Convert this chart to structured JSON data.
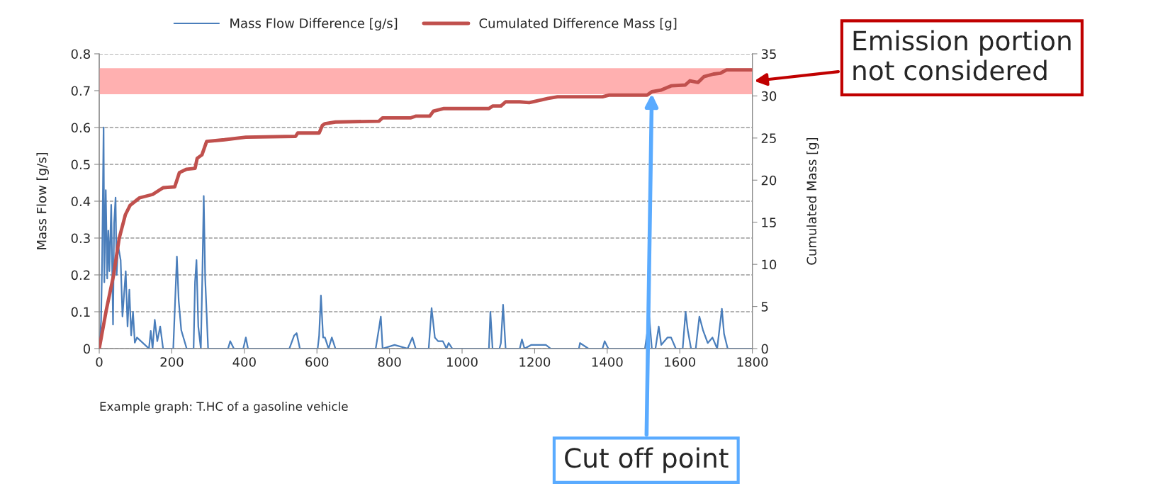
{
  "chart_data": {
    "type": "line",
    "xlim": [
      0,
      1800
    ],
    "xticks": [
      0,
      200,
      400,
      600,
      800,
      1000,
      1200,
      1400,
      1600,
      1800
    ],
    "ylabel": "Mass Flow [g/s]",
    "ylim": [
      0,
      0.8
    ],
    "yticks": [
      0,
      0.1,
      0.2,
      0.3,
      0.4,
      0.5,
      0.6,
      0.7,
      0.8
    ],
    "y2label": "Cumulated Mass [g]",
    "y2lim": [
      0,
      35
    ],
    "y2ticks": [
      0,
      5,
      10,
      15,
      20,
      25,
      30,
      35
    ],
    "grid": "y",
    "legend": "top",
    "line_style": "solid",
    "marker": "none",
    "series": [
      {
        "name": "Mass Flow Difference [g/s]",
        "color": "#4a7ebb",
        "x": [
          0,
          5,
          8,
          12,
          14,
          18,
          22,
          25,
          28,
          33,
          38,
          41,
          45,
          48,
          52,
          59,
          64,
          73,
          78,
          83,
          88,
          93,
          98,
          104,
          137,
          142,
          147,
          153,
          160,
          168,
          176,
          182,
          204,
          208,
          214,
          219,
          226,
          241,
          260,
          264,
          268,
          273,
          280,
          284,
          288,
          292,
          300,
          319,
          355,
          361,
          371,
          397,
          404,
          410,
          524,
          537,
          544,
          553,
          602,
          606,
          611,
          617,
          622,
          632,
          641,
          651,
          762,
          771,
          776,
          781,
          814,
          850,
          863,
          872,
          908,
          916,
          925,
          934,
          947,
          957,
          963,
          973,
          1074,
          1078,
          1084,
          1103,
          1107,
          1113,
          1120,
          1159,
          1165,
          1172,
          1191,
          1231,
          1244,
          1263,
          1322,
          1325,
          1348,
          1387,
          1393,
          1403,
          1504,
          1516,
          1523,
          1533,
          1542,
          1549,
          1566,
          1576,
          1589,
          1608,
          1616,
          1622,
          1631,
          1644,
          1654,
          1664,
          1677,
          1690,
          1703,
          1716,
          1722,
          1732,
          1800
        ],
        "values": [
          0,
          0.074,
          0.24,
          0.6,
          0.18,
          0.43,
          0.19,
          0.32,
          0.21,
          0.39,
          0.065,
          0.34,
          0.41,
          0.2,
          0.28,
          0.24,
          0.087,
          0.21,
          0.06,
          0.16,
          0.036,
          0.1,
          0.016,
          0.03,
          0,
          0.048,
          0,
          0.078,
          0.02,
          0.06,
          0,
          0,
          0,
          0.1,
          0.25,
          0.13,
          0.05,
          0,
          0,
          0.18,
          0.24,
          0.06,
          0,
          0.19,
          0.414,
          0.19,
          0,
          0,
          0,
          0.02,
          0,
          0,
          0.03,
          0,
          0,
          0.035,
          0.042,
          0,
          0,
          0.035,
          0.144,
          0.03,
          0.03,
          0,
          0.03,
          0,
          0,
          0.055,
          0.087,
          0,
          0.01,
          0,
          0.03,
          0,
          0,
          0.11,
          0.03,
          0.02,
          0.02,
          0,
          0.015,
          0,
          0,
          0.1,
          0,
          0,
          0.015,
          0.119,
          0,
          0,
          0.025,
          0,
          0.01,
          0.01,
          0,
          0,
          0,
          0.015,
          0,
          0,
          0.02,
          0,
          0,
          0.084,
          0,
          0,
          0.06,
          0.01,
          0.03,
          0.03,
          0,
          0,
          0.1,
          0.05,
          0,
          0,
          0.087,
          0.05,
          0.015,
          0.03,
          0,
          0.108,
          0.04,
          0,
          0
        ]
      },
      {
        "name": "Cumulated Difference Mass [g]",
        "color": "#c0504d",
        "axis": "y2",
        "x": [
          0,
          20,
          39,
          55,
          72,
          85,
          111,
          147,
          176,
          208,
          221,
          241,
          264,
          270,
          283,
          296,
          345,
          404,
          541,
          547,
          606,
          615,
          622,
          651,
          771,
          781,
          859,
          872,
          911,
          921,
          950,
          1074,
          1084,
          1107,
          1120,
          1159,
          1185,
          1237,
          1263,
          1387,
          1406,
          1510,
          1523,
          1549,
          1576,
          1615,
          1628,
          1650,
          1667,
          1693,
          1712,
          1729,
          1800
        ],
        "values": [
          0,
          4.7,
          8.6,
          13.1,
          15.9,
          17.0,
          17.9,
          18.3,
          19.1,
          19.2,
          20.9,
          21.3,
          21.4,
          22.6,
          23.0,
          24.6,
          24.8,
          25.1,
          25.2,
          25.6,
          25.6,
          26.5,
          26.7,
          26.9,
          27.0,
          27.4,
          27.4,
          27.6,
          27.6,
          28.2,
          28.5,
          28.5,
          28.8,
          28.8,
          29.3,
          29.3,
          29.2,
          29.7,
          29.9,
          29.9,
          30.1,
          30.1,
          30.5,
          30.7,
          31.2,
          31.3,
          31.8,
          31.6,
          32.3,
          32.6,
          32.7,
          33.1,
          33.1
        ]
      }
    ],
    "bands": [
      {
        "axis": "y2",
        "from": 30.2,
        "to": 33.3,
        "color": "#ffb0b0",
        "label": "Emission portion\nnot considered"
      }
    ],
    "annotations": [
      "Example graph: T.HC of a gasoline vehicle",
      "Cut off point"
    ]
  }
}
